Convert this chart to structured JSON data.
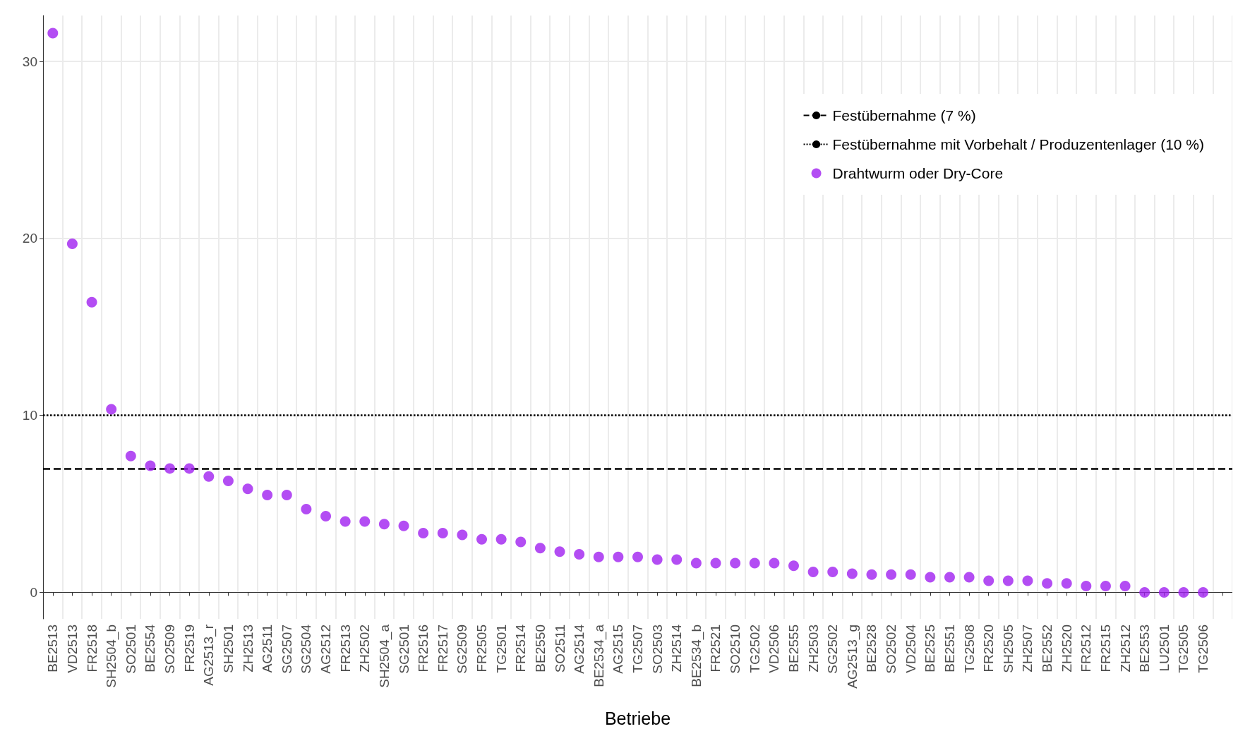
{
  "chart_data": {
    "type": "scatter",
    "xlabel": "Betriebe",
    "categories": [
      "BE2513",
      "VD2513",
      "FR2518",
      "SH2504_b",
      "SO2501",
      "BE2554",
      "SO2509",
      "FR2519",
      "AG2513_r",
      "SH2501",
      "ZH2513",
      "AG2511",
      "SG2507",
      "SG2504",
      "AG2512",
      "FR2513",
      "ZH2502",
      "SH2504_a",
      "SG2501",
      "FR2516",
      "FR2517",
      "SG2509",
      "FR2505",
      "TG2501",
      "FR2514",
      "BE2550",
      "SO2511",
      "AG2514",
      "BE2534_a",
      "AG2515",
      "TG2507",
      "SO2503",
      "ZH2514",
      "BE2534_b",
      "FR2521",
      "SO2510",
      "TG2502",
      "VD2506",
      "BE2555",
      "ZH2503",
      "SG2502",
      "AG2513_g",
      "BE2528",
      "SO2502",
      "VD2504",
      "BE2525",
      "BE2551",
      "TG2508",
      "FR2520",
      "SH2505",
      "ZH2507",
      "BE2552",
      "ZH2520",
      "FR2512",
      "FR2515",
      "ZH2512",
      "BE2553",
      "LU2501",
      "TG2505",
      "TG2506",
      null
    ],
    "series": [
      {
        "name": "Drahtwurm oder Dry-Core",
        "color": "#a020f0",
        "values": [
          31.6,
          19.7,
          16.4,
          10.35,
          7.7,
          7.15,
          7.0,
          7.0,
          6.55,
          6.3,
          5.85,
          5.5,
          5.5,
          4.7,
          4.3,
          4.0,
          4.0,
          3.85,
          3.75,
          3.35,
          3.35,
          3.25,
          3.0,
          3.0,
          2.85,
          2.5,
          2.3,
          2.15,
          2.0,
          2.0,
          2.0,
          1.85,
          1.85,
          1.65,
          1.65,
          1.65,
          1.65,
          1.65,
          1.5,
          1.15,
          1.15,
          1.05,
          1.0,
          1.0,
          1.0,
          0.85,
          0.85,
          0.85,
          0.65,
          0.65,
          0.65,
          0.5,
          0.5,
          0.35,
          0.35,
          0.35,
          0,
          0,
          0,
          0,
          null
        ]
      }
    ],
    "ylim": [
      -1.5,
      32.6
    ],
    "yticks": [
      0,
      10,
      20,
      30
    ],
    "grid": true,
    "legend": "top right",
    "marker": "circle",
    "ref_lines": [
      {
        "axis": "y",
        "value": 7,
        "label": "Festübernahme (7 %)",
        "line_style": "dashed",
        "color": "#000000"
      },
      {
        "axis": "y",
        "value": 10,
        "label": "Festübernahme mit Vorbehalt / Produzentenlager (10 %)",
        "line_style": "dotted",
        "color": "#000000"
      }
    ]
  }
}
